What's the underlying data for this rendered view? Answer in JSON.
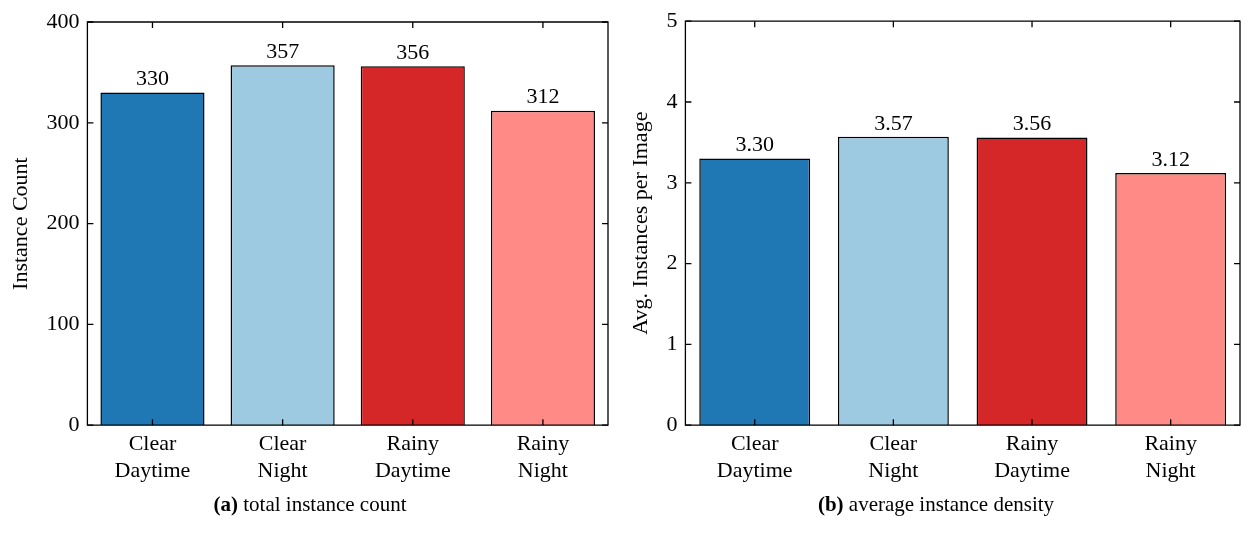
{
  "chart_data": [
    {
      "type": "bar",
      "title": "(a) total instance count",
      "ylabel": "Instance Count",
      "categories": [
        "Clear\nDaytime",
        "Clear\nNight",
        "Rainy\nDaytime",
        "Rainy\nNight"
      ],
      "values": [
        330,
        357,
        356,
        312
      ],
      "colors": [
        "#1f77b4",
        "#9ecae1",
        "#d62728",
        "#ff8a86"
      ],
      "ylim": [
        0,
        400
      ],
      "yticks": [
        0,
        100,
        200,
        300,
        400
      ],
      "grid": false,
      "legend": false,
      "data_labels": true
    },
    {
      "type": "bar",
      "title": "(b) average instance density",
      "ylabel": "Avg. Instances per Image",
      "categories": [
        "Clear\nDaytime",
        "Clear\nNight",
        "Rainy\nDaytime",
        "Rainy\nNight"
      ],
      "values": [
        3.3,
        3.57,
        3.56,
        3.12
      ],
      "value_labels": [
        "3.30",
        "3.57",
        "3.56",
        "3.12"
      ],
      "colors": [
        "#1f77b4",
        "#9ecae1",
        "#d62728",
        "#ff8a86"
      ],
      "ylim": [
        0,
        5
      ],
      "yticks": [
        0,
        1,
        2,
        3,
        4,
        5
      ],
      "grid": false,
      "legend": false
    }
  ]
}
